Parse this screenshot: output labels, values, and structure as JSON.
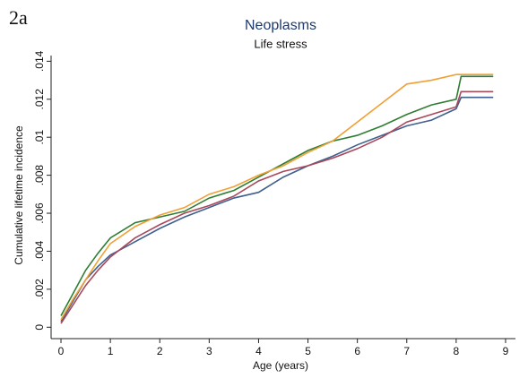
{
  "chart_data": {
    "type": "line",
    "panel_label": "2a",
    "title": "Neoplasms",
    "subtitle": "Life stress",
    "x_label": "Age (years)",
    "y_label": "Cumulative lifetime incidence",
    "x": [
      0,
      0.25,
      0.5,
      0.75,
      1,
      1.5,
      2,
      2.5,
      3,
      3.5,
      4,
      4.5,
      5,
      5.5,
      6,
      6.5,
      7,
      7.5,
      8,
      8.1,
      8.75
    ],
    "series": [
      {
        "color": "#3f5f8f",
        "values": [
          0.0003,
          0.0014,
          0.0025,
          0.0032,
          0.0038,
          0.0045,
          0.0052,
          0.0058,
          0.0063,
          0.0068,
          0.0071,
          0.0079,
          0.0085,
          0.009,
          0.0096,
          0.0101,
          0.0106,
          0.0109,
          0.0115,
          0.0121,
          0.0121
        ]
      },
      {
        "color": "#a8485a",
        "values": [
          0.0002,
          0.0012,
          0.0022,
          0.003,
          0.0037,
          0.0047,
          0.0054,
          0.006,
          0.0064,
          0.0069,
          0.0077,
          0.0082,
          0.0085,
          0.0089,
          0.0094,
          0.01,
          0.0108,
          0.0112,
          0.0116,
          0.0124,
          0.0124
        ]
      },
      {
        "color": "#2f7d32",
        "values": [
          0.0006,
          0.0018,
          0.003,
          0.0039,
          0.0047,
          0.0055,
          0.0058,
          0.0061,
          0.0068,
          0.0072,
          0.0079,
          0.0086,
          0.0093,
          0.0098,
          0.0101,
          0.0106,
          0.0112,
          0.0117,
          0.012,
          0.0132,
          0.0132
        ]
      },
      {
        "color": "#f0a035",
        "values": [
          0.0004,
          0.0015,
          0.0025,
          0.0035,
          0.0044,
          0.0053,
          0.0059,
          0.0063,
          0.007,
          0.0074,
          0.008,
          0.0085,
          0.0092,
          0.0098,
          0.0108,
          0.0118,
          0.0128,
          0.013,
          0.0133,
          0.0133,
          0.0133
        ]
      }
    ],
    "xlim": [
      -0.2,
      9.2
    ],
    "ylim": [
      -0.0006,
      0.0143
    ],
    "xticks": [
      0,
      1,
      2,
      3,
      4,
      5,
      6,
      7,
      8,
      9
    ],
    "yticks": [
      0,
      {
        "value": 0.002,
        "label": ".002"
      },
      {
        "value": 0.004,
        "label": ".004"
      },
      {
        "value": 0.006,
        "label": ".006"
      },
      {
        "value": 0.008,
        "label": ".008"
      },
      {
        "value": 0.01,
        "label": ".01"
      },
      {
        "value": 0.012,
        "label": ".012"
      },
      {
        "value": 0.014,
        "label": ".014"
      }
    ],
    "grid": false
  }
}
